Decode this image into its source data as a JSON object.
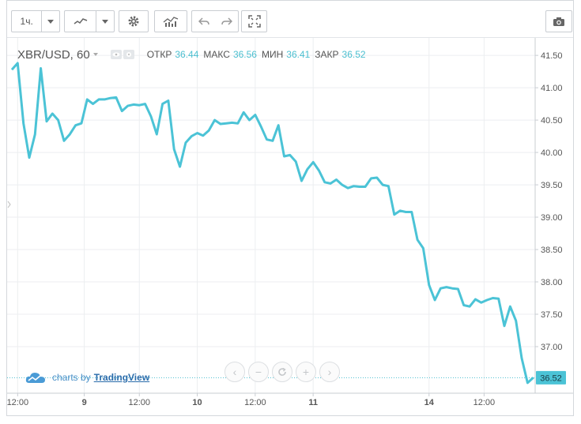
{
  "toolbar": {
    "interval": "1ч.",
    "icons": [
      "chart-style-icon",
      "settings-icon",
      "indicators-icon",
      "undo-icon",
      "redo-icon",
      "fullscreen-icon",
      "camera-icon"
    ]
  },
  "legend": {
    "symbol": "XBR/USD, 60",
    "open_label": "ОТКР",
    "open_value": "36.44",
    "high_label": "МАКС",
    "high_value": "36.56",
    "low_label": "МИН",
    "low_value": "36.41",
    "close_label": "ЗАКР",
    "close_value": "36.52"
  },
  "branding": {
    "prefix": "charts by",
    "name": "TradingView"
  },
  "colors": {
    "line": "#4bc3d6",
    "accent": "#4bbfd0",
    "grid": "#eceef0"
  },
  "chart_data": {
    "type": "line",
    "title": "XBR/USD, 60",
    "xlabel": "",
    "ylabel": "",
    "ylim": [
      36.28,
      41.77
    ],
    "y_ticks": [
      "41.50",
      "41.00",
      "40.50",
      "40.00",
      "39.50",
      "39.00",
      "38.50",
      "38.00",
      "37.50",
      "37.00"
    ],
    "y_tick_values": [
      41.5,
      41.0,
      40.5,
      40.0,
      39.5,
      39.0,
      38.5,
      38.0,
      37.5,
      37.0
    ],
    "x_ticks": [
      "12:00",
      "9",
      "12:00",
      "10",
      "12:00",
      "11",
      "14",
      "12:00"
    ],
    "x_tick_index": [
      1,
      12.5,
      22,
      32,
      42,
      52,
      72,
      81.5
    ],
    "x_bold_ticks": [
      "9",
      "10",
      "11",
      "14"
    ],
    "last_price": "36.52",
    "grid": true,
    "values": [
      41.28,
      41.38,
      40.45,
      39.92,
      40.28,
      41.3,
      40.48,
      40.6,
      40.5,
      40.18,
      40.28,
      40.42,
      40.45,
      40.82,
      40.75,
      40.82,
      40.82,
      40.84,
      40.85,
      40.64,
      40.72,
      40.74,
      40.73,
      40.75,
      40.56,
      40.28,
      40.75,
      40.8,
      40.05,
      39.78,
      40.15,
      40.25,
      40.3,
      40.26,
      40.34,
      40.5,
      40.44,
      40.45,
      40.46,
      40.45,
      40.62,
      40.5,
      40.58,
      40.4,
      40.2,
      40.18,
      40.42,
      39.94,
      39.96,
      39.86,
      39.56,
      39.74,
      39.85,
      39.72,
      39.54,
      39.52,
      39.58,
      39.5,
      39.45,
      39.48,
      39.47,
      39.47,
      39.6,
      39.61,
      39.5,
      39.48,
      39.04,
      39.1,
      39.08,
      39.08,
      38.65,
      38.52,
      37.95,
      37.72,
      37.9,
      37.92,
      37.9,
      37.89,
      37.64,
      37.62,
      37.73,
      37.68,
      37.72,
      37.75,
      37.74,
      37.32,
      37.62,
      37.4,
      36.82,
      36.44,
      36.52
    ]
  }
}
